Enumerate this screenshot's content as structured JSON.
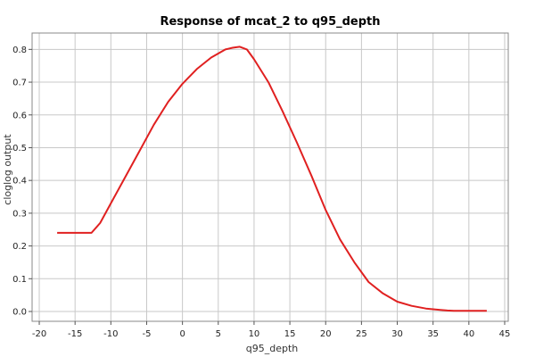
{
  "chart_data": {
    "type": "line",
    "title": "Response of mcat_2 to q95_depth",
    "xlabel": "q95_depth",
    "ylabel": "cloglog output",
    "xlim": [
      -21,
      45.5
    ],
    "ylim": [
      -0.03,
      0.85
    ],
    "xticks": [
      -20,
      -15,
      -10,
      -5,
      0,
      5,
      10,
      15,
      20,
      25,
      30,
      35,
      40,
      45
    ],
    "yticks": [
      0.0,
      0.1,
      0.2,
      0.3,
      0.4,
      0.5,
      0.6,
      0.7,
      0.8
    ],
    "grid": true,
    "series": [
      {
        "color": "#e02020",
        "x": [
          -17.5,
          -12.7,
          -11.5,
          -10,
          -8,
          -6,
          -4,
          -2,
          0,
          2,
          4,
          6,
          7,
          8,
          9,
          10,
          12,
          14,
          16,
          18,
          20,
          22,
          24,
          26,
          28,
          30,
          32,
          34,
          36,
          37,
          38,
          40,
          42.5
        ],
        "y": [
          0.24,
          0.24,
          0.27,
          0.33,
          0.41,
          0.49,
          0.57,
          0.64,
          0.695,
          0.74,
          0.775,
          0.8,
          0.805,
          0.808,
          0.8,
          0.77,
          0.7,
          0.61,
          0.515,
          0.415,
          0.31,
          0.22,
          0.15,
          0.09,
          0.055,
          0.03,
          0.017,
          0.009,
          0.005,
          0.003,
          0.002,
          0.002,
          0.002
        ]
      }
    ]
  }
}
